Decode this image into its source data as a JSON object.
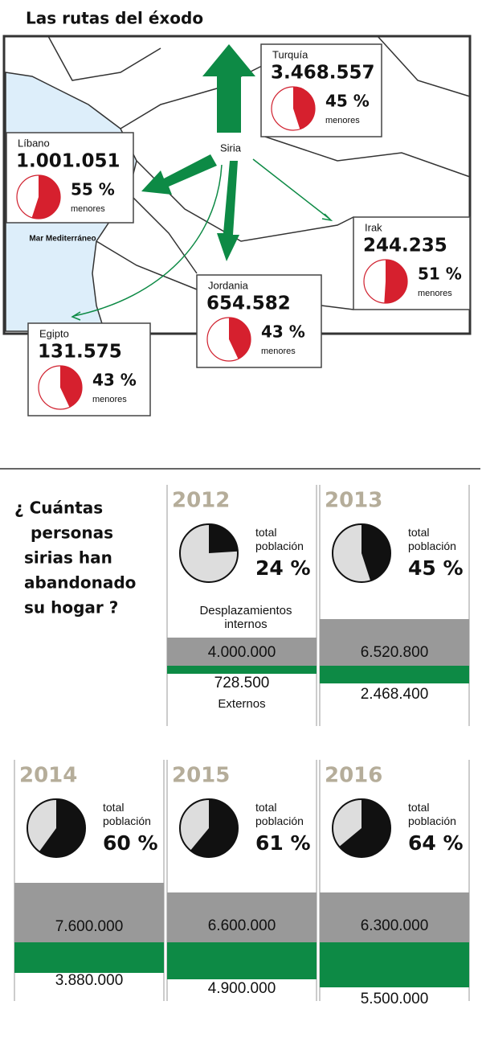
{
  "map": {
    "title": "Las rutas del éxodo",
    "origin": "Siria",
    "sea": "Mar Mediterráneo",
    "minors_label": "menores",
    "destinations": [
      {
        "name": "Turquía",
        "refugees": "3.468.557",
        "minors": 45,
        "minors_label": "45 %"
      },
      {
        "name": "Líbano",
        "refugees": "1.001.051",
        "minors": 55,
        "minors_label": "55 %"
      },
      {
        "name": "Irak",
        "refugees": "244.235",
        "minors": 51,
        "minors_label": "51 %"
      },
      {
        "name": "Jordania",
        "refugees": "654.582",
        "minors": 43,
        "minors_label": "43 %"
      },
      {
        "name": "Egipto",
        "refugees": "131.575",
        "minors": 43,
        "minors_label": "43 %"
      }
    ]
  },
  "timeline": {
    "question": [
      "¿ Cuántas",
      "personas",
      "sirias han",
      "abandonado",
      "su hogar ?"
    ],
    "share_label": "total población",
    "internal_label": "Desplazamientos internos",
    "external_label": "Externos",
    "years": [
      {
        "year": "2012",
        "share": 24,
        "share_label": "24 %",
        "internal": "4.000.000",
        "external": "728.500"
      },
      {
        "year": "2013",
        "share": 45,
        "share_label": "45 %",
        "internal": "6.520.800",
        "external": "2.468.400"
      },
      {
        "year": "2014",
        "share": 60,
        "share_label": "60 %",
        "internal": "7.600.000",
        "external": "3.880.000"
      },
      {
        "year": "2015",
        "share": 61,
        "share_label": "61 %",
        "internal": "6.600.000",
        "external": "4.900.000"
      },
      {
        "year": "2016",
        "share": 64,
        "share_label": "64 %",
        "internal": "6.300.000",
        "external": "5.500.000"
      }
    ]
  }
}
